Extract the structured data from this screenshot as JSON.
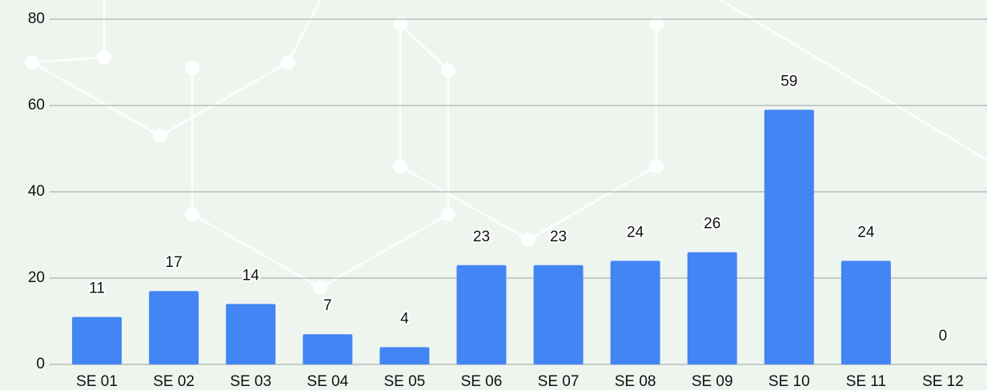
{
  "chart_data": {
    "type": "bar",
    "categories": [
      "SE 01",
      "SE 02",
      "SE 03",
      "SE 04",
      "SE 05",
      "SE 06",
      "SE 07",
      "SE 08",
      "SE 09",
      "SE 10",
      "SE 11",
      "SE 12"
    ],
    "values": [
      11,
      17,
      14,
      7,
      4,
      23,
      23,
      24,
      26,
      59,
      24,
      0
    ],
    "color": "#4285f4",
    "ylim": [
      0,
      80
    ],
    "yticks": [
      0,
      20,
      40,
      60,
      80
    ],
    "grid": true
  }
}
